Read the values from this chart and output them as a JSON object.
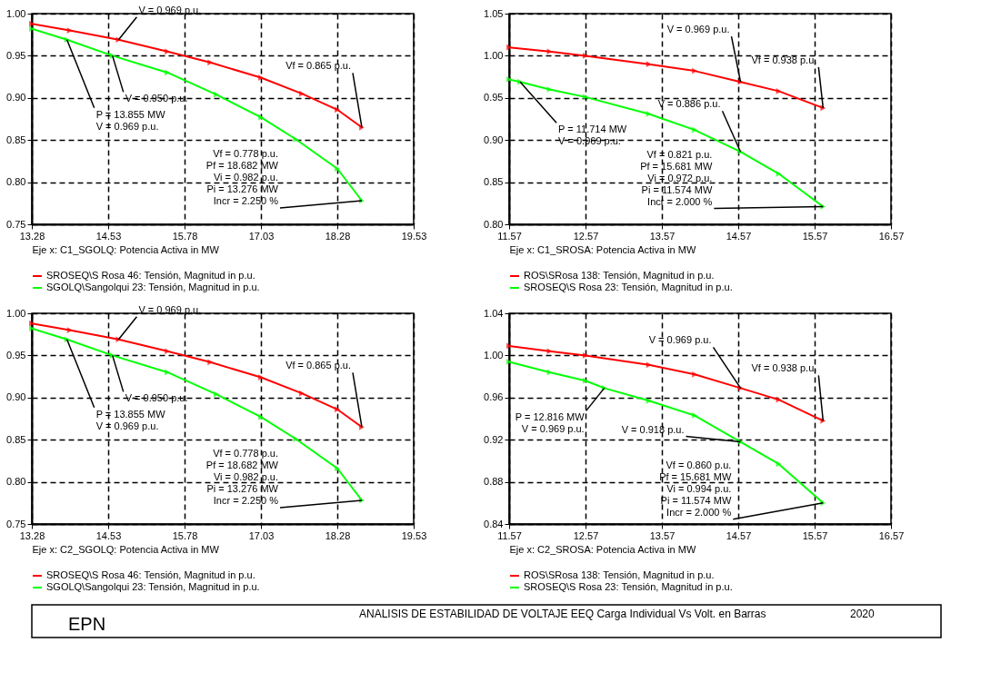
{
  "chart_data": [
    {
      "type": "line",
      "xlabel": "Eje x:   C1_SGOLQ: Potencia Activa in MW",
      "xlim": [
        13.28,
        19.53
      ],
      "xticks": [
        13.28,
        14.53,
        15.78,
        17.03,
        18.28,
        19.53
      ],
      "ylim": [
        0.75,
        1.0
      ],
      "yticks": [
        0.75,
        {
          "value": 0.8,
          "label": "0.80"
        },
        0.85,
        {
          "value": 0.9,
          "label": "0.90"
        },
        0.95,
        {
          "value": 1.0,
          "label": "1.00"
        }
      ],
      "grid": true,
      "legend": "bottom",
      "marker": "triangle",
      "line_style": "solid",
      "series": [
        {
          "name": "SROSEQ\\S Rosa 46: Tensión, Magnitud in p.u.",
          "color": "#ff0000",
          "x": [
            13.28,
            13.9,
            14.7,
            15.5,
            16.2,
            17.03,
            17.7,
            18.28,
            18.682
          ],
          "values": [
            0.988,
            0.98,
            0.969,
            0.955,
            0.942,
            0.924,
            0.905,
            0.886,
            0.865
          ]
        },
        {
          "name": "SGOLQ\\Sangolqui 23: Tensión, Magnitud in p.u.",
          "color": "#00ff00",
          "x": [
            13.28,
            13.855,
            14.6,
            15.5,
            16.3,
            17.03,
            17.6,
            18.28,
            18.682
          ],
          "values": [
            0.982,
            0.969,
            0.95,
            0.93,
            0.904,
            0.877,
            0.851,
            0.816,
            0.778
          ]
        }
      ],
      "annotations": [
        {
          "text": "V = 0.969 p.u.",
          "x": 14.7,
          "y": 0.969
        },
        {
          "text": "V = 0.950 p.u.",
          "x": 14.6,
          "y": 0.95
        },
        {
          "text": "P = 13.855 MW\nV = 0.969 p.u.",
          "x": 13.855,
          "y": 0.969
        },
        {
          "text": "Vf = 0.865 p.u.",
          "x": 18.682,
          "y": 0.865
        },
        {
          "text": "Vf = 0.778 p.u.\nPf = 18.682 MW\nVi = 0.982 p.u.\nPi = 13.276 MW\nIncr = 2.250 %",
          "x": 18.682,
          "y": 0.778
        }
      ]
    },
    {
      "type": "line",
      "xlabel": "Eje x:   C1_SROSA: Potencia Activa in MW",
      "xlim": [
        11.57,
        16.57
      ],
      "xticks": [
        11.57,
        12.57,
        13.57,
        14.57,
        15.57,
        16.57
      ],
      "ylim": [
        0.8,
        1.05
      ],
      "yticks": [
        {
          "value": 0.8,
          "label": "0.80"
        },
        0.85,
        {
          "value": 0.9,
          "label": "0.90"
        },
        0.95,
        {
          "value": 1.0,
          "label": "1.00"
        },
        1.05
      ],
      "grid": true,
      "legend": "bottom",
      "marker": "triangle",
      "line_style": "solid",
      "series": [
        {
          "name": "ROS\\SRosa 138: Tensión, Magnitud in p.u.",
          "color": "#ff0000",
          "x": [
            11.57,
            12.1,
            12.57,
            13.4,
            14.0,
            14.6,
            15.1,
            15.681
          ],
          "values": [
            1.01,
            1.005,
            1.0,
            0.99,
            0.982,
            0.969,
            0.958,
            0.938
          ]
        },
        {
          "name": "SROSEQ\\S Rosa 23: Tensión, Magnitud in p.u.",
          "color": "#00ff00",
          "x": [
            11.57,
            11.714,
            12.1,
            12.57,
            13.4,
            14.0,
            14.6,
            15.1,
            15.681
          ],
          "values": [
            0.972,
            0.969,
            0.96,
            0.951,
            0.931,
            0.912,
            0.886,
            0.86,
            0.821
          ]
        }
      ],
      "annotations": [
        {
          "text": "V = 0.969 p.u.",
          "x": 14.6,
          "y": 0.969
        },
        {
          "text": "Vf = 0.938 p.u.",
          "x": 15.681,
          "y": 0.938
        },
        {
          "text": "V = 0.886 p.u.",
          "x": 14.6,
          "y": 0.886
        },
        {
          "text": "P = 11.714 MW\nV = 0.969 p.u.",
          "x": 11.714,
          "y": 0.969
        },
        {
          "text": "Vf = 0.821 p.u.\nPf = 15.681 MW\nVi = 0.972 p.u.\nPi = 11.574 MW\nIncr = 2.000 %",
          "x": 15.681,
          "y": 0.821
        }
      ]
    },
    {
      "type": "line",
      "xlabel": "Eje x:   C2_SGOLQ: Potencia Activa in MW",
      "xlim": [
        13.28,
        19.53
      ],
      "xticks": [
        13.28,
        14.53,
        15.78,
        17.03,
        18.28,
        19.53
      ],
      "ylim": [
        0.75,
        1.0
      ],
      "yticks": [
        0.75,
        {
          "value": 0.8,
          "label": "0.80"
        },
        0.85,
        {
          "value": 0.9,
          "label": "0.90"
        },
        0.95,
        {
          "value": 1.0,
          "label": "1.00"
        }
      ],
      "grid": true,
      "legend": "bottom",
      "marker": "triangle",
      "line_style": "solid",
      "series": [
        {
          "name": "SROSEQ\\S Rosa 46: Tensión, Magnitud in p.u.",
          "color": "#ff0000",
          "x": [
            13.28,
            13.9,
            14.7,
            15.5,
            16.2,
            17.03,
            17.7,
            18.28,
            18.682
          ],
          "values": [
            0.988,
            0.98,
            0.969,
            0.955,
            0.942,
            0.924,
            0.905,
            0.886,
            0.865
          ]
        },
        {
          "name": "SGOLQ\\Sangolqui 23: Tensión, Magnitud in p.u.",
          "color": "#00ff00",
          "x": [
            13.28,
            13.855,
            14.6,
            15.5,
            16.3,
            17.03,
            17.6,
            18.28,
            18.682
          ],
          "values": [
            0.982,
            0.969,
            0.95,
            0.93,
            0.904,
            0.877,
            0.851,
            0.816,
            0.778
          ]
        }
      ],
      "annotations": [
        {
          "text": "V = 0.969 p.u.",
          "x": 14.7,
          "y": 0.969
        },
        {
          "text": "V = 0.950 p.u.",
          "x": 14.6,
          "y": 0.95
        },
        {
          "text": "P = 13.855 MW\nV = 0.969 p.u.",
          "x": 13.855,
          "y": 0.969
        },
        {
          "text": "Vf = 0.865 p.u.",
          "x": 18.682,
          "y": 0.865
        },
        {
          "text": "Vf = 0.778 p.u.\nPf = 18.682 MW\nVi = 0.982 p.u.\nPi = 13.276 MW\nIncr = 2.250 %",
          "x": 18.682,
          "y": 0.778
        }
      ]
    },
    {
      "type": "line",
      "xlabel": "Eje x:   C2_SROSA: Potencia Activa in MW",
      "xlim": [
        11.57,
        16.57
      ],
      "xticks": [
        11.57,
        12.57,
        13.57,
        14.57,
        15.57,
        16.57
      ],
      "ylim": [
        0.84,
        1.04
      ],
      "yticks": [
        0.84,
        0.88,
        0.92,
        0.96,
        {
          "value": 1.0,
          "label": "1.00"
        },
        1.04
      ],
      "grid": true,
      "legend": "bottom",
      "marker": "triangle",
      "line_style": "solid",
      "series": [
        {
          "name": "ROS\\SRosa 138: Tensión, Magnitud in p.u.",
          "color": "#ff0000",
          "x": [
            11.57,
            12.1,
            12.57,
            13.4,
            14.0,
            14.6,
            15.1,
            15.681
          ],
          "values": [
            1.009,
            1.004,
            1.0,
            0.991,
            0.982,
            0.969,
            0.958,
            0.938
          ]
        },
        {
          "name": "SROSEQ\\S Rosa 23: Tensión, Magnitud in p.u.",
          "color": "#00ff00",
          "x": [
            11.57,
            12.1,
            12.57,
            12.816,
            13.4,
            14.0,
            14.6,
            15.1,
            15.681
          ],
          "values": [
            0.994,
            0.984,
            0.976,
            0.969,
            0.957,
            0.943,
            0.918,
            0.897,
            0.86
          ]
        }
      ],
      "annotations": [
        {
          "text": "V = 0.969 p.u.",
          "x": 14.6,
          "y": 0.969
        },
        {
          "text": "Vf = 0.938 p.u.",
          "x": 15.681,
          "y": 0.938
        },
        {
          "text": "P = 12.816 MW\nV = 0.969 p.u.",
          "x": 12.816,
          "y": 0.969
        },
        {
          "text": "V = 0.918 p.u.",
          "x": 14.6,
          "y": 0.918
        },
        {
          "text": "Vf = 0.860 p.u.\nPf = 15.681 MW\nVi = 0.994 p.u.\nPi = 11.574 MW\nIncr = 2.000 %",
          "x": 15.681,
          "y": 0.86
        }
      ]
    },
    {
      "type": "other",
      "annotations": [
        "EPN",
        "ANALISIS DE ESTABILIDAD DE VOLTAJE EEQ Carga Individual Vs Volt. en Barras",
        "2020"
      ]
    }
  ]
}
